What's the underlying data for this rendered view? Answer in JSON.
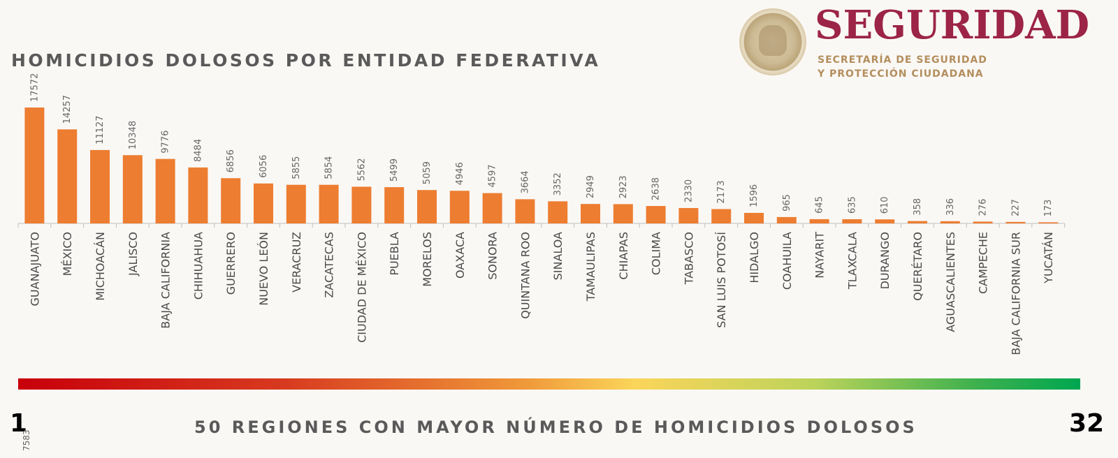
{
  "title": "HOMICIDIOS DOLOSOS POR ENTIDAD FEDERATIVA",
  "logo": {
    "seal_icon": "mexico-seal-icon",
    "brand": "SEGURIDAD",
    "sub_line1": "SECRETARÍA DE SEGURIDAD",
    "sub_line2": "Y PROTECCIÓN CIUDADANA",
    "brand_color": "#9c2447",
    "sub_color": "#b38e5d"
  },
  "chart_data": {
    "type": "bar",
    "title": "HOMICIDIOS DOLOSOS POR ENTIDAD FEDERATIVA",
    "bar_color": "#ed7d31",
    "categories": [
      "GUANAJUATO",
      "MÉXICO",
      "MICHOACÁN",
      "JALISCO",
      "BAJA CALIFORNIA",
      "CHIHUAHUA",
      "GUERRERO",
      "NUEVO LEÓN",
      "VERACRUZ",
      "ZACATECAS",
      "CIUDAD DE MÉXICO",
      "PUEBLA",
      "MORELOS",
      "OAXACA",
      "SONORA",
      "QUINTANA ROO",
      "SINALOA",
      "TAMAULIPAS",
      "CHIAPAS",
      "COLIMA",
      "TABASCO",
      "SAN LUIS POTOSÍ",
      "HIDALGO",
      "COAHUILA",
      "NAYARIT",
      "TLAXCALA",
      "DURANGO",
      "QUERÉTARO",
      "AGUASCALIENTES",
      "CAMPECHE",
      "BAJA CALIFORNIA SUR",
      "YUCATÁN"
    ],
    "values": [
      17572,
      14257,
      11127,
      10348,
      9776,
      8484,
      6856,
      6056,
      5855,
      5854,
      5562,
      5499,
      5059,
      4946,
      4597,
      3664,
      3352,
      2949,
      2923,
      2638,
      2330,
      2173,
      1596,
      965,
      645,
      635,
      610,
      358,
      336,
      276,
      227,
      173
    ],
    "ylim": [
      0,
      17572
    ],
    "grid": false,
    "legend": "none"
  },
  "scale": {
    "first_rank": "1",
    "last_rank": "32",
    "gradient_colors": [
      "#c8000a",
      "#f09a3a",
      "#fbd55a",
      "#00a650"
    ],
    "side_value": "7583"
  },
  "footer": "50 REGIONES CON MAYOR NÚMERO DE HOMICIDIOS DOLOSOS"
}
